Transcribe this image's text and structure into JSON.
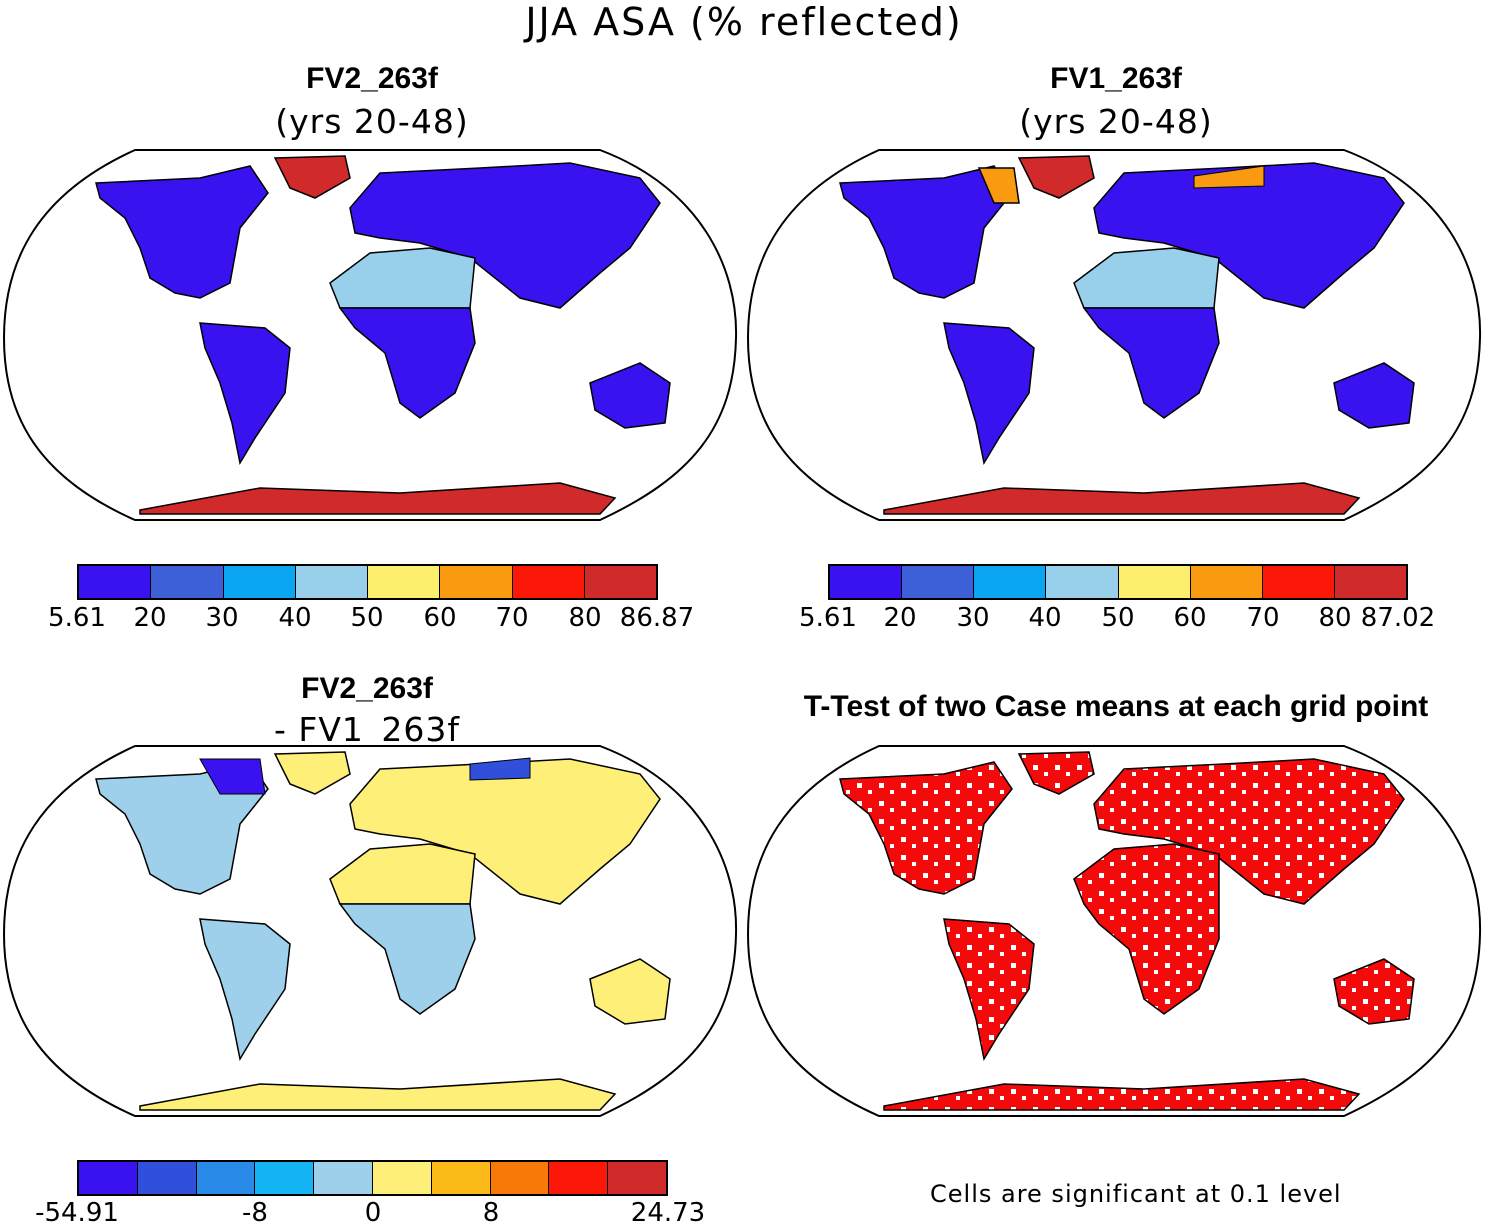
{
  "figure": {
    "title": "JJA ASA (% reflected)"
  },
  "panels": {
    "top_left": {
      "title": "FV2_263f",
      "subtitle": "(yrs 20-48)",
      "colorbar_min": "5.61",
      "colorbar_max": "86.87",
      "colorbar_ticks": [
        "5.61",
        "20",
        "30",
        "40",
        "50",
        "60",
        "70",
        "80",
        "86.87"
      ],
      "colors": [
        "#3a12f0",
        "#3d5fd8",
        "#0aa6f2",
        "#98d0ec",
        "#fdef6e",
        "#f99a10",
        "#fc1808",
        "#d12a2a"
      ]
    },
    "top_right": {
      "title": "FV1_263f",
      "subtitle": "(yrs 20-48)",
      "colorbar_min": "5.61",
      "colorbar_max": "87.02",
      "colorbar_ticks": [
        "5.61",
        "20",
        "30",
        "40",
        "50",
        "60",
        "70",
        "80",
        "87.02"
      ],
      "colors": [
        "#3a12f0",
        "#3d5fd8",
        "#0aa6f2",
        "#98d0ec",
        "#fdef6e",
        "#f99a10",
        "#fc1808",
        "#d12a2a"
      ]
    },
    "bottom_left": {
      "title": "FV2_263f",
      "subtitle": "- FV1_263f",
      "colorbar_ticks": [
        "-54.91",
        "-8",
        "0",
        "8",
        "24.73"
      ],
      "colors": [
        "#3a12f0",
        "#3050dc",
        "#2a8ae8",
        "#14b4f4",
        "#9ed0ec",
        "#fdef78",
        "#fbba18",
        "#f87808",
        "#fc1808",
        "#d12a2a"
      ]
    },
    "bottom_right": {
      "title": "T-Test of two Case means at each grid point",
      "note": "Cells are significant at 0.1 level",
      "color": "#f40a0a"
    }
  }
}
